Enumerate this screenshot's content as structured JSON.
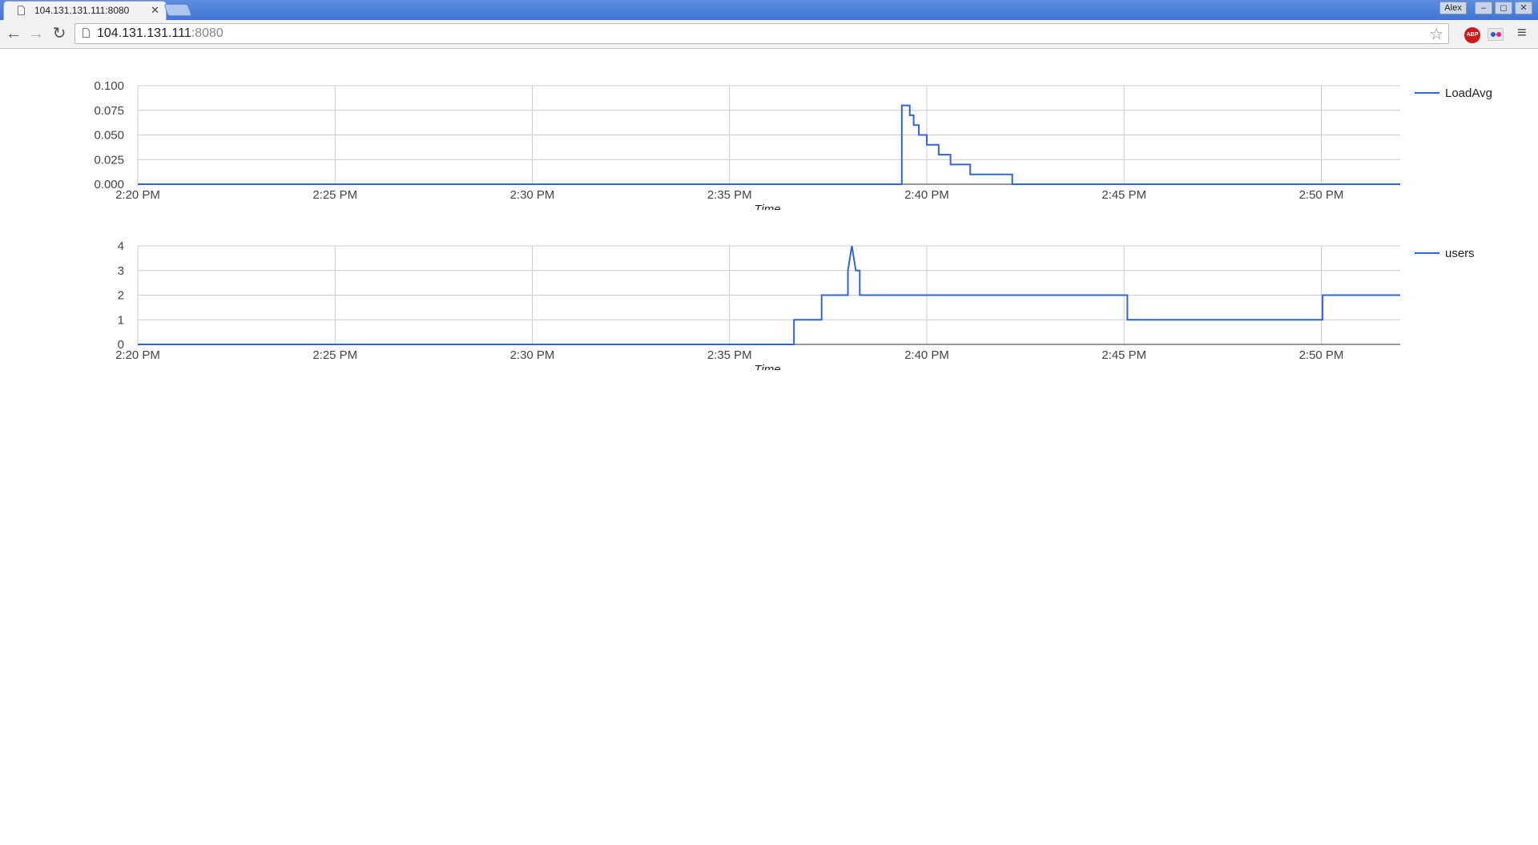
{
  "browser": {
    "tab_title": "104.131.131.111:8080",
    "tab_close": "✕",
    "user_label": "Alex",
    "min_glyph": "–",
    "max_glyph": "◻",
    "close_glyph": "✕",
    "back_glyph": "←",
    "forward_glyph": "→",
    "reload_glyph": "↻",
    "url_host": "104.131.131.111",
    "url_port": ":8080",
    "star_glyph": "☆",
    "abp_label": "ABP",
    "menu_glyph": "≡"
  },
  "colors": {
    "series": "#3366cc",
    "grid": "#cccccc",
    "axis_text": "#444444",
    "titlebar": "#4a80dc"
  },
  "chart_data": [
    {
      "type": "line",
      "title": "",
      "xlabel": "Time",
      "ylabel": "",
      "x_ticks": [
        "2:20 PM",
        "2:25 PM",
        "2:30 PM",
        "2:35 PM",
        "2:40 PM",
        "2:45 PM",
        "2:50 PM"
      ],
      "y_ticks": [
        "0.000",
        "0.025",
        "0.050",
        "0.075",
        "0.100"
      ],
      "xlim": [
        "2:20 PM",
        "2:52 PM"
      ],
      "ylim": [
        0,
        0.1
      ],
      "grid": true,
      "legend": "right",
      "series": [
        {
          "name": "LoadAvg",
          "x": [
            "2:20 PM",
            "2:39:22 PM",
            "2:39:22 PM",
            "2:39:34 PM",
            "2:39:34 PM",
            "2:39:40 PM",
            "2:39:40 PM",
            "2:39:48 PM",
            "2:39:48 PM",
            "2:40:00 PM",
            "2:40:00 PM",
            "2:40:18 PM",
            "2:40:18 PM",
            "2:40:36 PM",
            "2:40:36 PM",
            "2:41:06 PM",
            "2:41:06 PM",
            "2:42:10 PM",
            "2:42:10 PM",
            "2:52 PM"
          ],
          "values": [
            0,
            0,
            0.08,
            0.08,
            0.07,
            0.07,
            0.06,
            0.06,
            0.05,
            0.05,
            0.04,
            0.04,
            0.03,
            0.03,
            0.02,
            0.02,
            0.01,
            0.01,
            0,
            0
          ]
        }
      ]
    },
    {
      "type": "line",
      "title": "",
      "xlabel": "Time",
      "ylabel": "",
      "x_ticks": [
        "2:20 PM",
        "2:25 PM",
        "2:30 PM",
        "2:35 PM",
        "2:40 PM",
        "2:45 PM",
        "2:50 PM"
      ],
      "y_ticks": [
        "0",
        "1",
        "2",
        "3",
        "4"
      ],
      "xlim": [
        "2:20 PM",
        "2:52 PM"
      ],
      "ylim": [
        0,
        4
      ],
      "grid": true,
      "legend": "right",
      "series": [
        {
          "name": "users",
          "x": [
            "2:20 PM",
            "2:36:38 PM",
            "2:36:38 PM",
            "2:37:20 PM",
            "2:37:20 PM",
            "2:38:00 PM",
            "2:38:00 PM",
            "2:38:06 PM",
            "2:38:12 PM",
            "2:38:18 PM",
            "2:38:18 PM",
            "2:45:05 PM",
            "2:45:05 PM",
            "2:50:02 PM",
            "2:50:02 PM",
            "2:52 PM"
          ],
          "values": [
            0,
            0,
            1,
            1,
            2,
            2,
            3,
            4,
            3,
            3,
            2,
            2,
            1,
            1,
            2,
            2
          ]
        }
      ]
    }
  ]
}
